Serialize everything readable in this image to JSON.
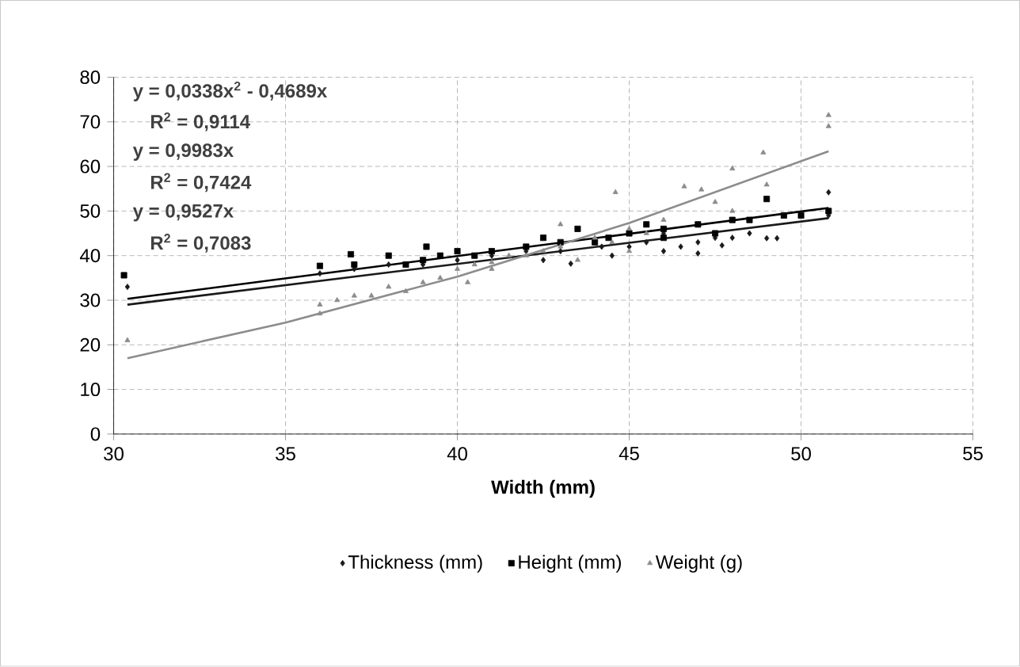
{
  "chart_data": {
    "type": "scatter",
    "xlabel": "Width (mm)",
    "xlim": [
      30,
      55
    ],
    "xticks": [
      30,
      35,
      40,
      45,
      50,
      55
    ],
    "ylim": [
      0,
      80
    ],
    "yticks": [
      0,
      10,
      20,
      30,
      40,
      50,
      60,
      70,
      80
    ],
    "grid": true,
    "legend": "bottom",
    "annotations": [
      "y = 0,0338x$^{2}$ - 0,4689x",
      "R$^{2}$ = 0,9114",
      "y = 0,9983x",
      "R$^{2}$ = 0,7424",
      "y = 0,9527x",
      "R$^{2}$ = 0,7083"
    ],
    "series": [
      {
        "name": "Thickness (mm)",
        "color": "#1a1a1a",
        "marker": "diamond",
        "x": [
          30.4,
          36,
          37,
          38,
          39,
          40,
          41,
          42,
          42.5,
          43,
          43.3,
          44.2,
          44.5,
          45,
          45.5,
          46,
          46,
          46.5,
          47,
          47,
          47.5,
          47.7,
          48,
          48.5,
          49,
          49.3,
          50.8,
          50.8
        ],
        "values": [
          33,
          36,
          37,
          38,
          38,
          39,
          40,
          41,
          39,
          41,
          38.2,
          42,
          40,
          42,
          43,
          41,
          45,
          42,
          43,
          40.5,
          44,
          42.3,
          44,
          45,
          43.9,
          43.9,
          54.2,
          49
        ]
      },
      {
        "name": "Height (mm)",
        "color": "#000000",
        "marker": "square",
        "x": [
          30.3,
          36,
          36.9,
          37,
          38,
          38.5,
          39,
          39.1,
          39.5,
          40,
          40.5,
          41,
          42,
          42.5,
          43,
          43.5,
          44.4,
          44,
          45,
          45.5,
          46,
          46,
          47,
          47.5,
          48,
          48.5,
          49,
          49.5,
          50,
          50.8
        ],
        "values": [
          35.6,
          37.7,
          40.3,
          38,
          40,
          38,
          39,
          42,
          40,
          41,
          40,
          41,
          42,
          44,
          43,
          46,
          44,
          43,
          45,
          47,
          46,
          44,
          47,
          45,
          48,
          48,
          52.7,
          49,
          49,
          50
        ]
      },
      {
        "name": "Weight (g)",
        "color": "#8c8c8c",
        "marker": "triangle",
        "x": [
          30.4,
          36,
          36,
          36.5,
          37,
          37.5,
          38,
          38.5,
          39,
          39.5,
          40,
          40.3,
          40.5,
          41,
          41,
          41.5,
          42,
          42.5,
          43,
          43,
          43.5,
          44,
          44.6,
          44.5,
          45,
          45,
          45.5,
          46,
          46.6,
          47.1,
          47.5,
          48,
          48,
          48.9,
          49,
          50.8,
          50.8
        ],
        "values": [
          21,
          27,
          29,
          30,
          31,
          31,
          33,
          32,
          34,
          35,
          37,
          34,
          38,
          37,
          38.5,
          40,
          40,
          41,
          42,
          47,
          39,
          44,
          54.2,
          43,
          46,
          41,
          45,
          48,
          55.5,
          54.8,
          52,
          50,
          59.5,
          63.1,
          55.9,
          71.5,
          69
        ]
      },
      {
        "type": "line",
        "color": "#1a1a1a",
        "x": [
          30.4,
          50.8
        ],
        "values": [
          29,
          48.4
        ]
      },
      {
        "type": "line",
        "color": "#000000",
        "x": [
          30.4,
          50.8
        ],
        "values": [
          30.3,
          50.7
        ]
      },
      {
        "type": "line",
        "color": "#8c8c8c",
        "x": [
          30.4,
          35,
          40,
          45,
          50.8
        ],
        "values": [
          17,
          25,
          35.3,
          47.3,
          63.4
        ]
      }
    ]
  }
}
